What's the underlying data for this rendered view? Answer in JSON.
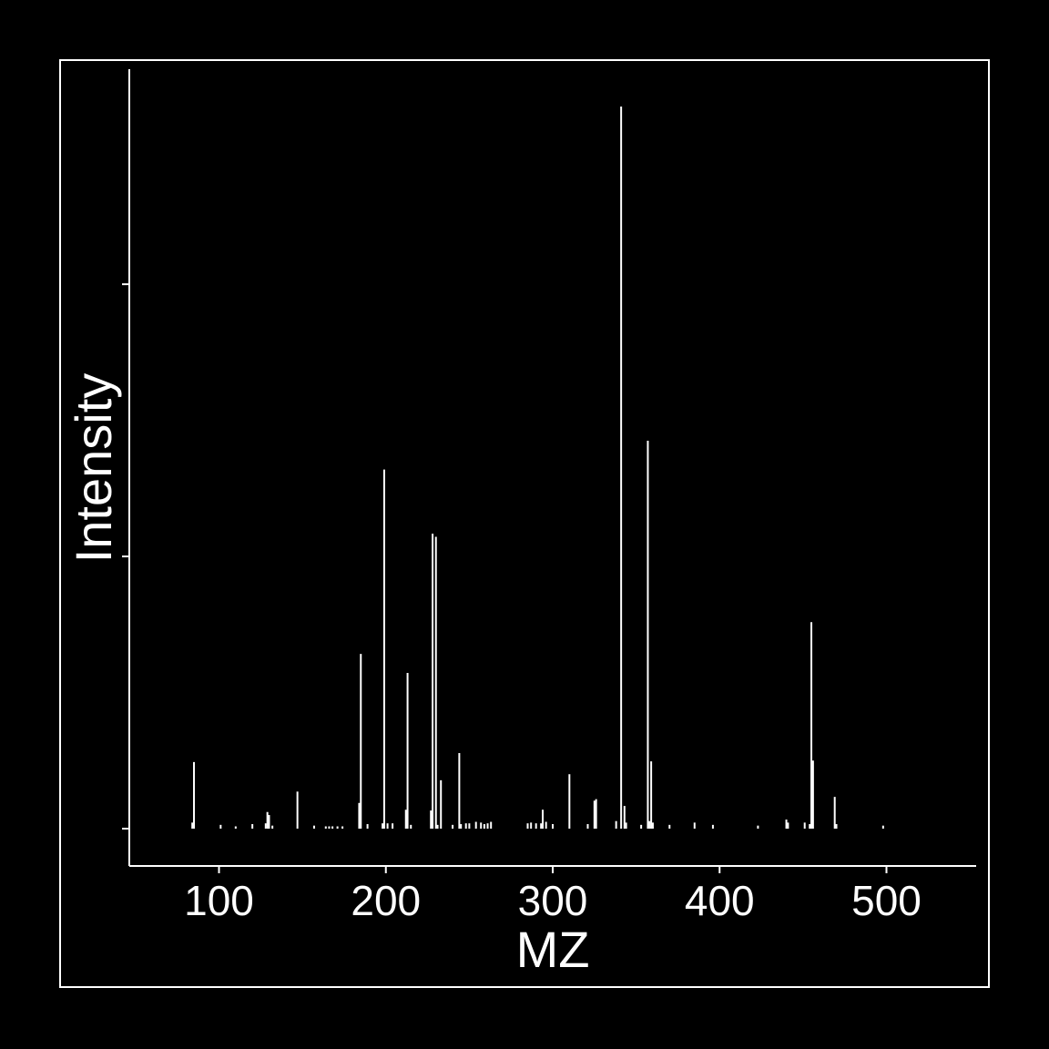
{
  "chart_data": {
    "type": "bar",
    "title": "",
    "xlabel": "MZ",
    "ylabel": "Intensity",
    "xlim": [
      47,
      555
    ],
    "ylim": [
      0,
      100
    ],
    "xticks": [
      100,
      200,
      300,
      400,
      500
    ],
    "yticks": [
      0,
      36,
      72
    ],
    "yticks_labeled": false,
    "grid": false,
    "legend": "none",
    "colors": {
      "background": "#000000",
      "foreground": "#ffffff"
    },
    "x": [
      84,
      85,
      101,
      110,
      120,
      128,
      129,
      130,
      132,
      147,
      157,
      164,
      166,
      168,
      171,
      174,
      184,
      185,
      189,
      198,
      199,
      201,
      204,
      212,
      213,
      215,
      227,
      228,
      230,
      231,
      233,
      240,
      244,
      245,
      248,
      250,
      254,
      257,
      259,
      261,
      263,
      285,
      287,
      290,
      293,
      294,
      296,
      300,
      310,
      321,
      325,
      326,
      338,
      341,
      343,
      344,
      353,
      357,
      358,
      359,
      360,
      370,
      385,
      396,
      423,
      440,
      441,
      451,
      454,
      455,
      456,
      469,
      470,
      498
    ],
    "values": [
      0.8,
      8.8,
      0.5,
      0.3,
      0.6,
      0.7,
      2.2,
      1.8,
      0.4,
      4.9,
      0.4,
      0.3,
      0.3,
      0.3,
      0.3,
      0.3,
      3.4,
      23.1,
      0.6,
      0.7,
      47.5,
      0.7,
      0.7,
      2.5,
      20.6,
      0.5,
      2.4,
      39.0,
      38.6,
      0.5,
      6.4,
      0.5,
      10.0,
      0.6,
      0.7,
      0.7,
      0.9,
      0.8,
      0.6,
      0.7,
      0.9,
      0.7,
      0.8,
      0.7,
      0.7,
      2.5,
      0.9,
      0.6,
      7.2,
      0.6,
      3.7,
      3.9,
      1.0,
      95.5,
      3.0,
      0.8,
      0.5,
      51.3,
      1.0,
      8.9,
      0.8,
      0.5,
      0.8,
      0.5,
      0.4,
      1.2,
      0.8,
      0.8,
      0.6,
      27.3,
      9.0,
      4.2,
      0.6,
      0.4
    ]
  }
}
